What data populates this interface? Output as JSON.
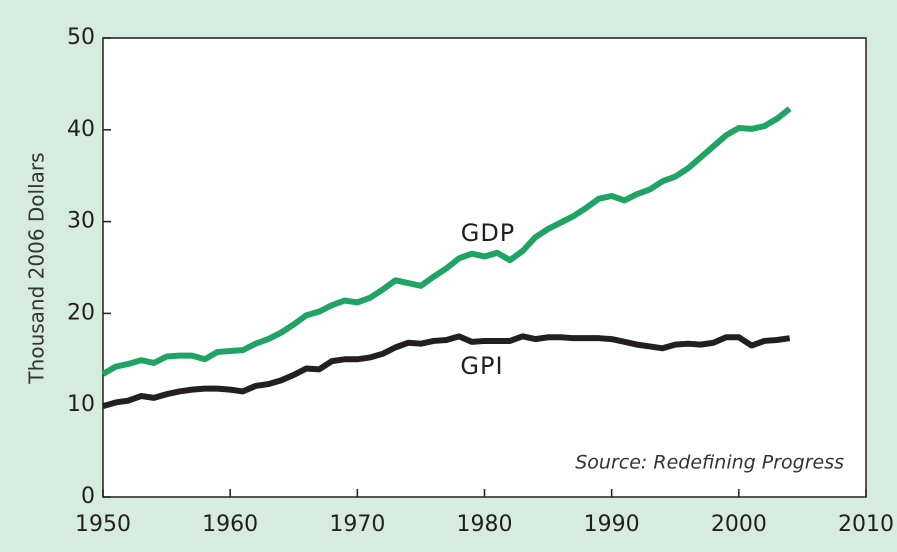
{
  "chart_data": {
    "type": "line",
    "y_label": "Thousand 2006 Dollars",
    "annotations": [
      "GDP",
      "GPI",
      "Source: Redefining Progress"
    ],
    "x": [
      1950,
      1951,
      1952,
      1953,
      1954,
      1955,
      1956,
      1957,
      1958,
      1959,
      1960,
      1961,
      1962,
      1963,
      1964,
      1965,
      1966,
      1967,
      1968,
      1969,
      1970,
      1971,
      1972,
      1973,
      1974,
      1975,
      1976,
      1977,
      1978,
      1979,
      1980,
      1981,
      1982,
      1983,
      1984,
      1985,
      1986,
      1987,
      1988,
      1989,
      1990,
      1991,
      1992,
      1993,
      1994,
      1995,
      1996,
      1997,
      1998,
      1999,
      2000,
      2001,
      2002,
      2003,
      2004
    ],
    "series": [
      {
        "name": "GDP",
        "color": "#1fa463",
        "values": [
          13.4,
          14.2,
          14.5,
          14.9,
          14.6,
          15.3,
          15.4,
          15.4,
          15.0,
          15.8,
          15.9,
          16.0,
          16.7,
          17.2,
          17.9,
          18.8,
          19.8,
          20.2,
          20.9,
          21.4,
          21.2,
          21.7,
          22.6,
          23.6,
          23.3,
          23.0,
          24.0,
          24.9,
          26.0,
          26.5,
          26.2,
          26.6,
          25.8,
          26.8,
          28.3,
          29.2,
          29.9,
          30.6,
          31.5,
          32.5,
          32.8,
          32.3,
          33.0,
          33.5,
          34.4,
          34.9,
          35.8,
          37.0,
          38.2,
          39.4,
          40.2,
          40.1,
          40.4,
          41.2,
          42.3
        ]
      },
      {
        "name": "GPI",
        "color": "#231f20",
        "values": [
          9.9,
          10.3,
          10.5,
          11.0,
          10.8,
          11.2,
          11.5,
          11.7,
          11.8,
          11.8,
          11.7,
          11.5,
          12.1,
          12.3,
          12.7,
          13.3,
          14.0,
          13.9,
          14.8,
          15.0,
          15.0,
          15.2,
          15.6,
          16.3,
          16.8,
          16.7,
          17.0,
          17.1,
          17.5,
          16.9,
          17.0,
          17.0,
          17.0,
          17.5,
          17.2,
          17.4,
          17.4,
          17.3,
          17.3,
          17.3,
          17.2,
          16.9,
          16.6,
          16.4,
          16.2,
          16.6,
          16.7,
          16.6,
          16.8,
          17.4,
          17.4,
          16.5,
          17.0,
          17.1,
          17.3
        ]
      }
    ],
    "xlim": [
      1950,
      2010
    ],
    "xticks": [
      1950,
      1960,
      1970,
      1980,
      1990,
      2000,
      2010
    ],
    "ylim": [
      0,
      50
    ],
    "yticks": [
      0,
      10,
      20,
      30,
      40,
      50
    ],
    "grid": false
  }
}
